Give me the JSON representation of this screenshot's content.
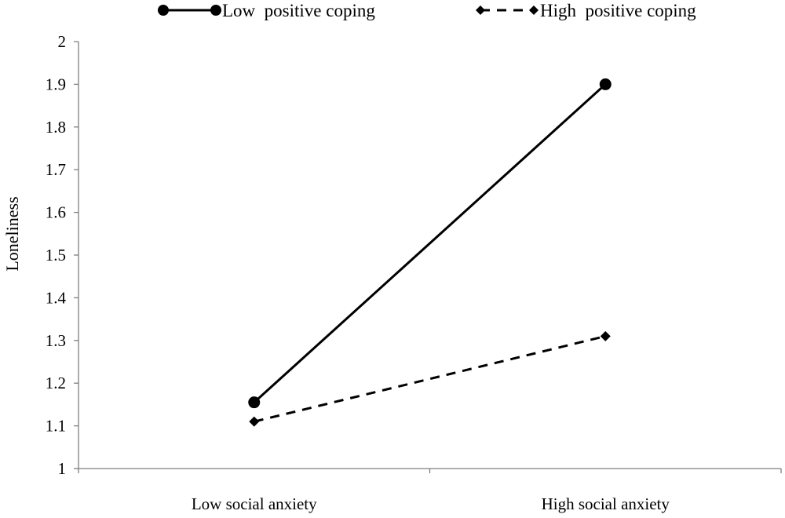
{
  "chart_data": {
    "type": "line",
    "title": "",
    "xlabel": "",
    "ylabel": "Loneliness",
    "categories": [
      "Low social anxiety",
      "High social anxiety"
    ],
    "ylim": [
      1,
      2
    ],
    "yticks": [
      "1",
      "1.1",
      "1.2",
      "1.3",
      "1.4",
      "1.5",
      "1.6",
      "1.7",
      "1.8",
      "1.9",
      "2"
    ],
    "grid": false,
    "legend_position": "top",
    "series": [
      {
        "name": "Low  positive coping",
        "values": [
          1.155,
          1.9
        ],
        "marker": "circle",
        "line": "solid",
        "color": "#000000"
      },
      {
        "name": "High  positive coping",
        "values": [
          1.11,
          1.31
        ],
        "marker": "diamond",
        "line": "dashed",
        "color": "#000000"
      }
    ]
  }
}
